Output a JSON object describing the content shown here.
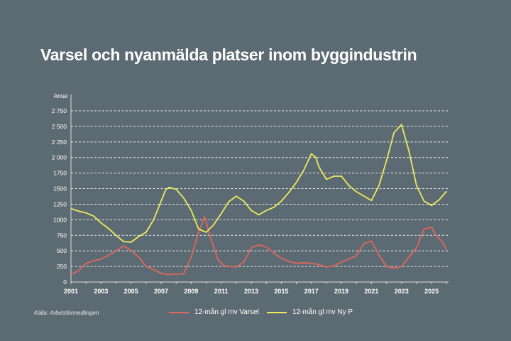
{
  "chart_data": {
    "type": "line",
    "title": "Varsel och nyanmälda platser inom byggindustrin",
    "ylabel": "Antal",
    "xlabel": "",
    "ylim": [
      0,
      2750
    ],
    "xlim": [
      2001,
      2026
    ],
    "yticks": [
      0,
      250,
      500,
      750,
      1000,
      1250,
      1500,
      1750,
      2000,
      2250,
      2500,
      2750
    ],
    "ytick_labels": [
      "0",
      "250",
      "500",
      "750",
      "1000",
      "1250",
      "1500",
      "1750",
      "2 000",
      "2 250",
      "2 500",
      "2 750"
    ],
    "xticks": [
      2001,
      2003,
      2005,
      2007,
      2009,
      2011,
      2013,
      2015,
      2017,
      2019,
      2021,
      2023,
      2025
    ],
    "grid": "horizontal dashed",
    "legend": "bottom",
    "source": "Källa: Arbetsförmedlingen",
    "series": [
      {
        "name": "12-mån gl mv Varsel",
        "color": "#e0675a",
        "x": [
          2001,
          2001.5,
          2002,
          2002.5,
          2003,
          2003.5,
          2004,
          2004.5,
          2005,
          2005.5,
          2006,
          2006.5,
          2007,
          2007.5,
          2008,
          2008.5,
          2009,
          2009.5,
          2009.9,
          2010.3,
          2010.8,
          2011.2,
          2011.6,
          2012,
          2012.5,
          2013,
          2013.5,
          2014,
          2014.5,
          2015,
          2015.5,
          2016,
          2016.5,
          2017,
          2017.5,
          2018,
          2018.5,
          2019,
          2019.5,
          2020,
          2020.5,
          2021,
          2021.5,
          2022,
          2022.5,
          2023,
          2023.5,
          2024,
          2024.5,
          2025,
          2025.3,
          2025.7,
          2026
        ],
        "values": [
          120,
          180,
          300,
          340,
          370,
          430,
          500,
          580,
          510,
          400,
          250,
          200,
          140,
          120,
          130,
          130,
          400,
          800,
          1050,
          700,
          350,
          260,
          250,
          240,
          320,
          550,
          600,
          560,
          470,
          380,
          330,
          300,
          310,
          300,
          280,
          240,
          260,
          320,
          370,
          420,
          620,
          660,
          430,
          250,
          220,
          250,
          400,
          550,
          850,
          880,
          750,
          650,
          520
        ]
      },
      {
        "name": "12-mån gl mv Ny P",
        "color": "#eeea5a",
        "x": [
          2001,
          2001.5,
          2002,
          2002.5,
          2003,
          2003.5,
          2004,
          2004.5,
          2005,
          2005.5,
          2006,
          2006.5,
          2007,
          2007.3,
          2007.5,
          2008,
          2008.5,
          2009,
          2009.5,
          2010,
          2010.5,
          2011,
          2011.5,
          2012,
          2012.5,
          2013,
          2013.5,
          2014,
          2014.5,
          2015,
          2015.5,
          2016,
          2016.5,
          2017,
          2017.3,
          2017.5,
          2018,
          2018.5,
          2019,
          2019.5,
          2020,
          2020.5,
          2021,
          2021.5,
          2022,
          2022.5,
          2023,
          2023.5,
          2024,
          2024.5,
          2025,
          2025.5,
          2026
        ],
        "values": [
          1180,
          1140,
          1110,
          1060,
          950,
          860,
          750,
          650,
          640,
          730,
          800,
          1000,
          1300,
          1480,
          1520,
          1490,
          1350,
          1150,
          850,
          800,
          920,
          1100,
          1290,
          1380,
          1300,
          1150,
          1080,
          1150,
          1200,
          1300,
          1440,
          1600,
          1800,
          2060,
          2000,
          1850,
          1650,
          1700,
          1700,
          1550,
          1450,
          1380,
          1310,
          1550,
          1950,
          2400,
          2530,
          2100,
          1550,
          1300,
          1230,
          1320,
          1460
        ]
      }
    ]
  }
}
